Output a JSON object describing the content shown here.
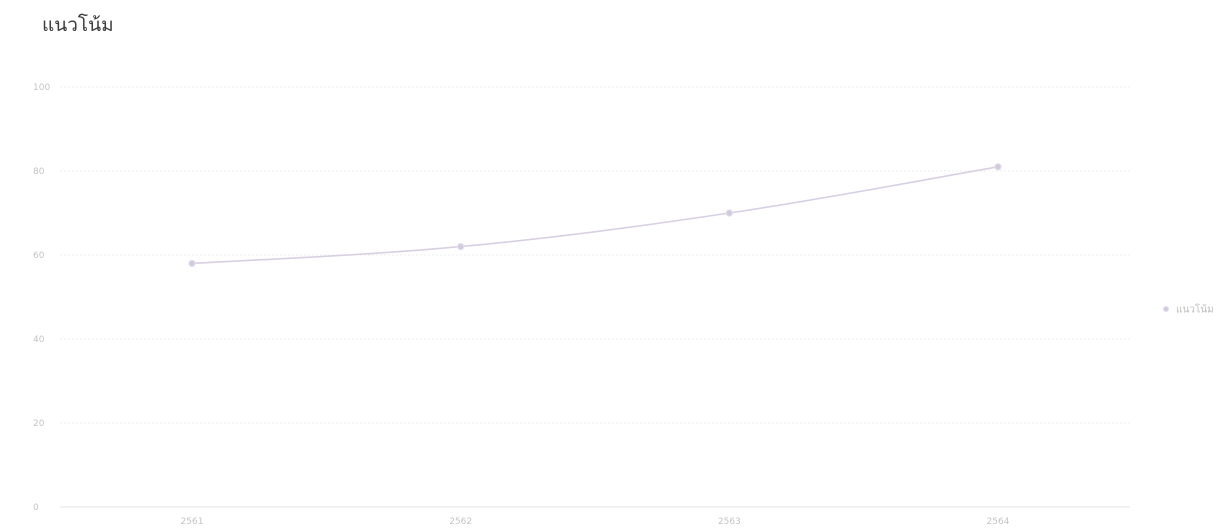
{
  "chart_data": {
    "type": "line",
    "title": "แนวโน้ม",
    "categories": [
      "2561",
      "2562",
      "2563",
      "2564"
    ],
    "series": [
      {
        "name": "แนวโน้ม",
        "values": [
          58,
          62,
          70,
          81
        ]
      }
    ],
    "ylim": [
      0,
      100
    ],
    "yticks": [
      0,
      20,
      40,
      60,
      80,
      100
    ],
    "grid": true,
    "legend_position": "right",
    "colors": {
      "line": "#d7d0e2",
      "point": "#d2cbde",
      "grid": "#ececec",
      "tick_text": "#c4c4c4"
    }
  }
}
